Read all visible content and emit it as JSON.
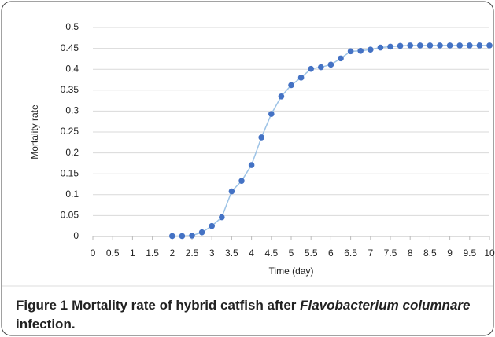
{
  "chart_data": {
    "type": "line",
    "y_label": "Mortality rate",
    "x_label": "Time (day)",
    "x": [
      2,
      2.25,
      2.5,
      2.75,
      3,
      3.25,
      3.5,
      3.75,
      4,
      4.25,
      4.5,
      4.75,
      5,
      5.25,
      5.5,
      5.75,
      6,
      6.25,
      6.5,
      6.75,
      7,
      7.25,
      7.5,
      7.75,
      8,
      8.25,
      8.5,
      8.75,
      9,
      9.25,
      9.5,
      9.75,
      10
    ],
    "series": [
      {
        "color": "#4472c4",
        "line_color": "#9dc3e6",
        "values": [
          0.001,
          0.001,
          0.002,
          0.01,
          0.025,
          0.046,
          0.108,
          0.133,
          0.171,
          0.237,
          0.293,
          0.335,
          0.362,
          0.38,
          0.401,
          0.405,
          0.411,
          0.426,
          0.443,
          0.444,
          0.447,
          0.452,
          0.454,
          0.456,
          0.457,
          0.457,
          0.457,
          0.457,
          0.457,
          0.457,
          0.457,
          0.457,
          0.457
        ]
      }
    ],
    "xlim": [
      0,
      10
    ],
    "xticks": [
      0,
      0.5,
      1,
      1.5,
      2,
      2.5,
      3,
      3.5,
      4,
      4.5,
      5,
      5.5,
      6,
      6.5,
      7,
      7.5,
      8,
      8.5,
      9,
      9.5,
      10
    ],
    "ylim": [
      0,
      0.5
    ],
    "yticks": [
      0,
      0.05,
      0.1,
      0.15,
      0.2,
      0.25,
      0.3,
      0.35,
      0.4,
      0.45,
      0.5
    ],
    "grid": true
  },
  "caption": {
    "label": "Figure 1",
    "text": "Mortality rate of hybrid catfish after ",
    "italic": "Flavobacterium columnare",
    "end": " infection."
  }
}
